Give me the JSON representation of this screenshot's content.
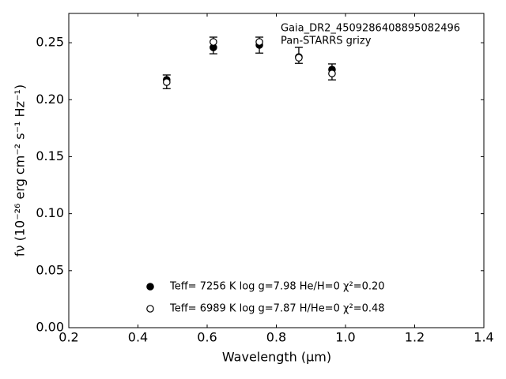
{
  "chart_data": {
    "type": "scatter",
    "annotations": [
      "Gaia_DR2_4509286408895082496",
      "Pan-STARRS grizy"
    ],
    "x_label": "Wavelength (μm)",
    "y_label": "fν (10⁻²⁶ erg cm⁻² s⁻¹ Hz⁻¹)",
    "x": [
      0.483,
      0.618,
      0.751,
      0.865,
      0.961
    ],
    "series": [
      {
        "name": "Teff=  7256 K  log g=7.98  He/H=0  χ²=0.20",
        "color": "#000000",
        "marker": "filled",
        "values": [
          0.2175,
          0.2458,
          0.248,
          0.2375,
          0.2265
        ]
      },
      {
        "name": "Teff=  6989 K  log g=7.87  H/He=0  χ²=0.48",
        "color": "#000000",
        "marker": "open",
        "values": [
          0.2154,
          0.2507,
          0.2507,
          0.2368,
          0.223
        ]
      }
    ],
    "errorbars": {
      "values": [
        0.2157,
        0.2476,
        0.2479,
        0.2389,
        0.2244
      ],
      "errors": [
        0.006,
        0.0073,
        0.007,
        0.007,
        0.007
      ]
    },
    "xlim": [
      0.2,
      1.4
    ],
    "ylim": [
      0,
      0.2757
    ],
    "xticks": [
      0.2,
      0.4,
      0.6,
      0.8,
      {
        "value": 1,
        "label": "1.0"
      },
      1.2,
      1.4
    ],
    "yticks": [
      {
        "value": 0,
        "label": "0.00"
      },
      0.05,
      {
        "value": 0.1,
        "label": "0.10"
      },
      0.15,
      {
        "value": 0.2,
        "label": "0.20"
      },
      0.25
    ],
    "grid": false
  }
}
